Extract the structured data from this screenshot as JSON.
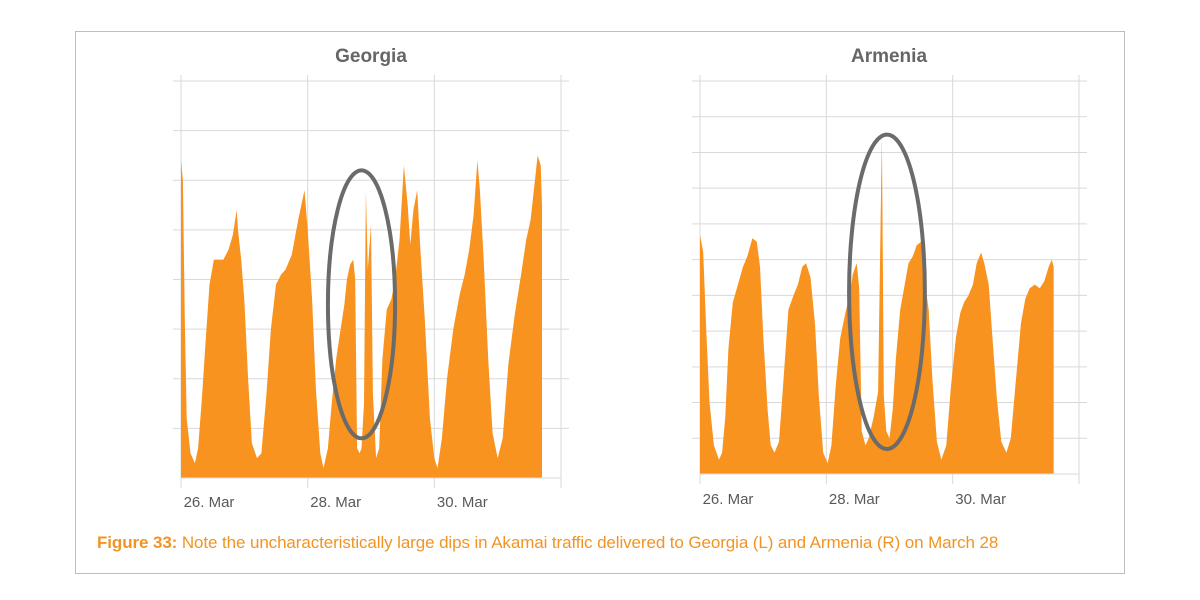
{
  "colors": {
    "fill": "#F7931E",
    "grid": "#d9d9d9",
    "annotation": "#6b6b6b",
    "caption": "#F29423",
    "title": "#666666"
  },
  "caption": {
    "label": "Figure 33:",
    "text": "Note the uncharacteristically large dips in Akamai traffic delivered to Georgia (L) and Armenia (R) on March 28"
  },
  "chart_data": [
    {
      "type": "area",
      "title": "Georgia",
      "xlabel": "",
      "ylabel": "",
      "grid": true,
      "x_ticks": [
        "26. Mar",
        "28. Mar",
        "30. Mar"
      ],
      "x_tick_days": [
        26,
        28,
        30
      ],
      "x_range_days": [
        26,
        32
      ],
      "y_range": [
        0,
        8
      ],
      "y_gridlines": 8,
      "annotation": {
        "type": "ellipse",
        "center_day": 28.85,
        "center_value": 3.5,
        "radius_days": 0.53,
        "radius_value": 2.7
      },
      "series": [
        {
          "values": [
            [
              26.0,
              6.4
            ],
            [
              26.03,
              6.0
            ],
            [
              26.06,
              3.2
            ],
            [
              26.09,
              1.2
            ],
            [
              26.15,
              0.5
            ],
            [
              26.22,
              0.3
            ],
            [
              26.27,
              0.6
            ],
            [
              26.33,
              1.6
            ],
            [
              26.38,
              2.6
            ],
            [
              26.45,
              3.9
            ],
            [
              26.52,
              4.4
            ],
            [
              26.6,
              4.4
            ],
            [
              26.67,
              4.4
            ],
            [
              26.75,
              4.6
            ],
            [
              26.82,
              4.9
            ],
            [
              26.88,
              5.4
            ],
            [
              26.9,
              5.0
            ],
            [
              26.95,
              4.4
            ],
            [
              27.0,
              3.6
            ],
            [
              27.06,
              2.0
            ],
            [
              27.12,
              0.7
            ],
            [
              27.2,
              0.4
            ],
            [
              27.27,
              0.5
            ],
            [
              27.35,
              1.7
            ],
            [
              27.42,
              3.0
            ],
            [
              27.5,
              3.9
            ],
            [
              27.58,
              4.1
            ],
            [
              27.65,
              4.2
            ],
            [
              27.75,
              4.5
            ],
            [
              27.85,
              5.2
            ],
            [
              27.95,
              5.8
            ],
            [
              28.0,
              5.0
            ],
            [
              28.07,
              3.6
            ],
            [
              28.13,
              1.8
            ],
            [
              28.2,
              0.5
            ],
            [
              28.25,
              0.2
            ],
            [
              28.32,
              0.6
            ],
            [
              28.38,
              1.5
            ],
            [
              28.45,
              2.4
            ],
            [
              28.52,
              3.0
            ],
            [
              28.58,
              3.5
            ],
            [
              28.62,
              4.0
            ],
            [
              28.67,
              4.3
            ],
            [
              28.72,
              4.4
            ],
            [
              28.75,
              4.0
            ],
            [
              28.78,
              0.6
            ],
            [
              28.82,
              0.5
            ],
            [
              28.85,
              0.6
            ],
            [
              28.89,
              1.5
            ],
            [
              28.92,
              5.8
            ],
            [
              28.95,
              4.2
            ],
            [
              29.0,
              5.1
            ],
            [
              29.03,
              1.7
            ],
            [
              29.08,
              0.4
            ],
            [
              29.13,
              0.6
            ],
            [
              29.18,
              2.4
            ],
            [
              29.25,
              3.4
            ],
            [
              29.32,
              3.6
            ],
            [
              29.38,
              4.0
            ],
            [
              29.45,
              4.8
            ],
            [
              29.52,
              6.3
            ],
            [
              29.58,
              5.5
            ],
            [
              29.62,
              4.7
            ],
            [
              29.67,
              5.4
            ],
            [
              29.73,
              5.8
            ],
            [
              29.78,
              4.6
            ],
            [
              29.85,
              3.2
            ],
            [
              29.93,
              1.2
            ],
            [
              30.0,
              0.4
            ],
            [
              30.05,
              0.2
            ],
            [
              30.12,
              0.8
            ],
            [
              30.2,
              2.0
            ],
            [
              30.3,
              3.0
            ],
            [
              30.4,
              3.7
            ],
            [
              30.48,
              4.1
            ],
            [
              30.55,
              4.6
            ],
            [
              30.62,
              5.3
            ],
            [
              30.68,
              6.4
            ],
            [
              30.72,
              5.8
            ],
            [
              30.78,
              4.4
            ],
            [
              30.85,
              2.4
            ],
            [
              30.92,
              0.9
            ],
            [
              31.0,
              0.4
            ],
            [
              31.08,
              0.8
            ],
            [
              31.17,
              2.3
            ],
            [
              31.27,
              3.3
            ],
            [
              31.37,
              4.1
            ],
            [
              31.45,
              4.8
            ],
            [
              31.52,
              5.2
            ],
            [
              31.58,
              5.9
            ],
            [
              31.63,
              6.5
            ],
            [
              31.68,
              6.3
            ],
            [
              31.7,
              5.5
            ]
          ]
        }
      ]
    },
    {
      "type": "area",
      "title": "Armenia",
      "xlabel": "",
      "ylabel": "",
      "grid": true,
      "x_ticks": [
        "26. Mar",
        "28. Mar",
        "30. Mar"
      ],
      "x_tick_days": [
        26,
        28,
        30
      ],
      "x_range_days": [
        26,
        32
      ],
      "y_range": [
        0,
        11
      ],
      "y_gridlines": 11,
      "annotation": {
        "type": "ellipse",
        "center_day": 28.96,
        "center_value": 5.1,
        "radius_days": 0.6,
        "radius_value": 4.4
      },
      "series": [
        {
          "values": [
            [
              26.0,
              6.7
            ],
            [
              26.05,
              6.2
            ],
            [
              26.1,
              4.0
            ],
            [
              26.15,
              2.0
            ],
            [
              26.22,
              0.8
            ],
            [
              26.3,
              0.4
            ],
            [
              26.35,
              0.6
            ],
            [
              26.4,
              1.6
            ],
            [
              26.45,
              3.5
            ],
            [
              26.52,
              4.8
            ],
            [
              26.6,
              5.3
            ],
            [
              26.68,
              5.8
            ],
            [
              26.75,
              6.1
            ],
            [
              26.83,
              6.6
            ],
            [
              26.9,
              6.5
            ],
            [
              26.95,
              5.8
            ],
            [
              27.0,
              3.9
            ],
            [
              27.07,
              1.8
            ],
            [
              27.12,
              0.8
            ],
            [
              27.18,
              0.6
            ],
            [
              27.25,
              0.9
            ],
            [
              27.32,
              2.6
            ],
            [
              27.4,
              4.6
            ],
            [
              27.48,
              5.0
            ],
            [
              27.55,
              5.3
            ],
            [
              27.62,
              5.8
            ],
            [
              27.68,
              5.9
            ],
            [
              27.75,
              5.5
            ],
            [
              27.82,
              4.2
            ],
            [
              27.88,
              2.2
            ],
            [
              27.95,
              0.6
            ],
            [
              28.02,
              0.3
            ],
            [
              28.08,
              0.8
            ],
            [
              28.15,
              2.5
            ],
            [
              28.22,
              3.8
            ],
            [
              28.3,
              4.5
            ],
            [
              28.37,
              5.0
            ],
            [
              28.42,
              5.6
            ],
            [
              28.48,
              5.9
            ],
            [
              28.52,
              5.2
            ],
            [
              28.56,
              1.2
            ],
            [
              28.62,
              0.8
            ],
            [
              28.67,
              1.0
            ],
            [
              28.75,
              1.6
            ],
            [
              28.82,
              2.3
            ],
            [
              28.88,
              9.5
            ],
            [
              28.91,
              2.2
            ],
            [
              28.95,
              1.2
            ],
            [
              29.0,
              1.0
            ],
            [
              29.05,
              1.8
            ],
            [
              29.1,
              3.2
            ],
            [
              29.17,
              4.6
            ],
            [
              29.24,
              5.3
            ],
            [
              29.3,
              5.9
            ],
            [
              29.37,
              6.1
            ],
            [
              29.43,
              6.4
            ],
            [
              29.5,
              6.5
            ],
            [
              29.55,
              5.5
            ],
            [
              29.62,
              4.6
            ],
            [
              29.68,
              2.6
            ],
            [
              29.75,
              0.9
            ],
            [
              29.82,
              0.4
            ],
            [
              29.9,
              0.8
            ],
            [
              29.97,
              2.4
            ],
            [
              30.05,
              3.8
            ],
            [
              30.12,
              4.5
            ],
            [
              30.18,
              4.8
            ],
            [
              30.25,
              5.0
            ],
            [
              30.32,
              5.3
            ],
            [
              30.38,
              5.9
            ],
            [
              30.45,
              6.2
            ],
            [
              30.5,
              5.9
            ],
            [
              30.57,
              5.3
            ],
            [
              30.63,
              3.8
            ],
            [
              30.7,
              2.1
            ],
            [
              30.77,
              0.9
            ],
            [
              30.85,
              0.6
            ],
            [
              30.92,
              1.0
            ],
            [
              31.0,
              2.6
            ],
            [
              31.08,
              4.2
            ],
            [
              31.15,
              4.9
            ],
            [
              31.22,
              5.2
            ],
            [
              31.3,
              5.3
            ],
            [
              31.38,
              5.2
            ],
            [
              31.45,
              5.4
            ],
            [
              31.52,
              5.8
            ],
            [
              31.57,
              6.0
            ],
            [
              31.6,
              5.8
            ]
          ]
        }
      ]
    }
  ]
}
